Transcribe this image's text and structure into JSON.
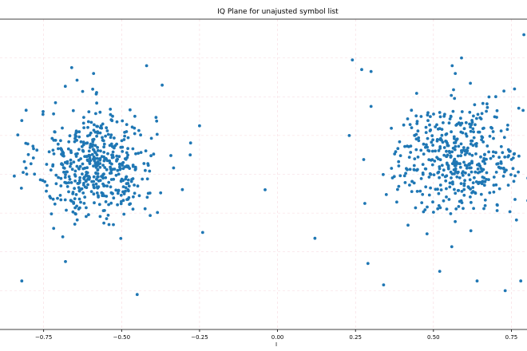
{
  "chart_data": {
    "type": "scatter",
    "title": "IQ Plane for unajusted symbol list",
    "xlabel": "I",
    "ylabel": "",
    "xlim": [
      -0.89,
      0.8
    ],
    "ylim": [
      -0.8,
      0.8
    ],
    "xticks": [
      -0.75,
      -0.5,
      -0.25,
      0.0,
      0.25,
      0.5,
      0.75
    ],
    "xtick_labels": [
      "−0.75",
      "−0.50",
      "−0.25",
      "0.00",
      "0.25",
      "0.50",
      "0.75"
    ],
    "grid": true,
    "series": [
      {
        "color": "#1f77b4",
        "marker": "circle",
        "clusters": [
          {
            "name_hidden": true,
            "center": [
              -0.58,
              0.05
            ],
            "spread": [
              0.17,
              0.24
            ],
            "count": 520
          },
          {
            "name_hidden": true,
            "center": [
              0.58,
              0.08
            ],
            "spread": [
              0.19,
              0.23
            ],
            "count": 470
          }
        ],
        "points": [
          [
            -0.66,
            0.55
          ],
          [
            -0.59,
            0.52
          ],
          [
            -0.42,
            0.56
          ],
          [
            -0.37,
            0.46
          ],
          [
            -0.45,
            -0.62
          ],
          [
            -0.82,
            -0.55
          ],
          [
            -0.68,
            -0.45
          ],
          [
            -0.25,
            0.25
          ],
          [
            -0.28,
            0.1
          ],
          [
            -0.24,
            -0.3
          ],
          [
            -0.04,
            -0.08
          ],
          [
            0.12,
            -0.33
          ],
          [
            0.23,
            0.2
          ],
          [
            0.24,
            0.59
          ],
          [
            0.27,
            0.54
          ],
          [
            0.3,
            0.53
          ],
          [
            0.29,
            -0.46
          ],
          [
            0.34,
            -0.57
          ],
          [
            0.56,
            0.56
          ],
          [
            0.57,
            0.52
          ],
          [
            0.59,
            0.6
          ],
          [
            0.73,
            -0.6
          ],
          [
            0.79,
            0.72
          ],
          [
            0.78,
            -0.55
          ],
          [
            0.64,
            -0.55
          ],
          [
            0.52,
            -0.5
          ],
          [
            0.28,
            -0.15
          ],
          [
            0.3,
            0.35
          ],
          [
            0.7,
            0.4
          ],
          [
            0.76,
            0.44
          ]
        ]
      }
    ]
  }
}
